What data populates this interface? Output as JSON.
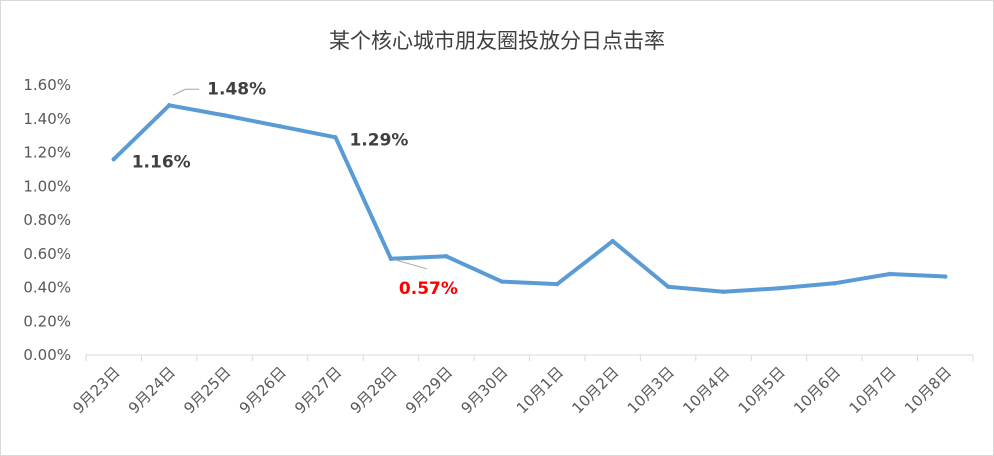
{
  "chart_data": {
    "type": "line",
    "title": "某个核心城市朋友圈投放分日点击率",
    "xlabel": "",
    "ylabel": "",
    "categories": [
      "9月23日",
      "9月24日",
      "9月25日",
      "9月26日",
      "9月27日",
      "9月28日",
      "9月29日",
      "9月30日",
      "10月1日",
      "10月2日",
      "10月3日",
      "10月4日",
      "10月5日",
      "10月6日",
      "10月7日",
      "10月8日"
    ],
    "series": [
      {
        "values": [
          1.16,
          1.48,
          1.42,
          1.355,
          1.29,
          0.57,
          0.585,
          0.435,
          0.42,
          0.675,
          0.405,
          0.375,
          0.395,
          0.425,
          0.48,
          0.465
        ],
        "color": "#5b9bd5"
      }
    ],
    "ylim": [
      0,
      1.6
    ],
    "yticks": [
      "0.00%",
      "0.20%",
      "0.40%",
      "0.60%",
      "0.80%",
      "1.00%",
      "1.20%",
      "1.40%",
      "1.60%"
    ],
    "grid": false,
    "annotations": [
      {
        "index": 0,
        "text": "1.16%",
        "color": "#404040"
      },
      {
        "index": 1,
        "text": "1.48%",
        "color": "#404040"
      },
      {
        "index": 4,
        "text": "1.29%",
        "color": "#404040"
      },
      {
        "index": 5,
        "text": "0.57%",
        "color": "#ff0000"
      }
    ]
  }
}
